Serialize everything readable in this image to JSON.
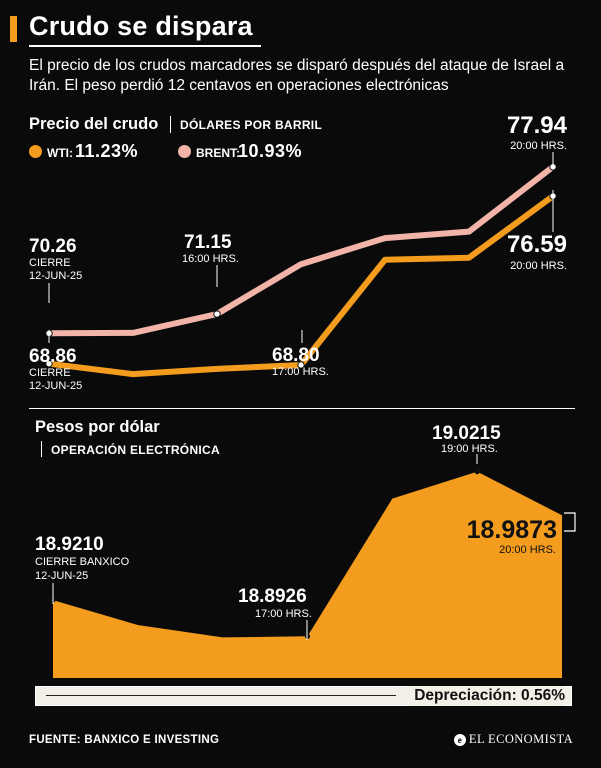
{
  "header": {
    "title": "Crudo se dispara",
    "subtitle": "El precio de los crudos marcadores se disparó después del ataque de Israel a Irán. El peso perdió 12 centavos en operaciones electrónicas"
  },
  "crude": {
    "title": "Precio del crudo",
    "unit": "DÓLARES POR BARRIL",
    "legend": [
      {
        "label": "WTI:",
        "value": "11.23%",
        "color": "#f39c1e"
      },
      {
        "label": "BRENT:",
        "value": "10.93%",
        "color": "#f2b3a8"
      }
    ],
    "annotations": {
      "brent_start_value": "70.26",
      "brent_start_sub1": "CIERRE",
      "brent_start_sub2": "12-JUN-25",
      "brent_mid_value": "71.15",
      "brent_mid_sub": "16:00 HRS.",
      "brent_end_value": "77.94",
      "brent_end_sub": "20:00 HRS.",
      "wti_start_value": "68.86",
      "wti_start_sub1": "CIERRE",
      "wti_start_sub2": "12-JUN-25",
      "wti_mid_value": "68.80",
      "wti_mid_sub": "17:00 HRS.",
      "wti_end_value": "76.59",
      "wti_end_sub": "20:00 HRS."
    }
  },
  "peso": {
    "title": "Pesos por dólar",
    "unit": "OPERACIÓN ELECTRÓNICA",
    "annotations": {
      "start_value": "18.9210",
      "start_sub1": "CIERRE BANXICO",
      "start_sub2": "12-JUN-25",
      "mid_value": "18.8926",
      "mid_sub": "17:00 HRS.",
      "peak_value": "19.0215",
      "peak_sub": "19:00 HRS.",
      "end_value": "18.9873",
      "end_sub": "20:00 HRS."
    },
    "depreciation": "Depreciación: 0.56%"
  },
  "footer": {
    "source": "FUENTE: BANXICO E INVESTING",
    "logo": "EL ECONOMISTA"
  },
  "chart_data": [
    {
      "type": "line",
      "title": "Precio del crudo",
      "ylabel": "DÓLARES POR BARRIL",
      "x": [
        "12-JUN-25",
        "",
        "16:00",
        "17:00",
        "",
        "",
        "20:00"
      ],
      "ylim": [
        67.0,
        79.5
      ],
      "series": [
        {
          "name": "BRENT",
          "color": "#f2b3a8",
          "values": [
            70.26,
            70.28,
            71.15,
            73.45,
            74.65,
            74.95,
            77.94
          ]
        },
        {
          "name": "WTI",
          "color": "#f39c1e",
          "values": [
            68.86,
            68.38,
            68.62,
            68.8,
            73.65,
            73.75,
            76.59
          ]
        }
      ]
    },
    {
      "type": "area",
      "title": "Pesos por dólar",
      "ylabel": "OPERACIÓN ELECTRÓNICA",
      "x": [
        "12-JUN-25",
        "",
        "",
        "17:00",
        "",
        "19:00",
        "20:00"
      ],
      "ylim": [
        18.86,
        19.04
      ],
      "series": [
        {
          "color": "#f39c1e",
          "values": [
            18.921,
            18.9015,
            18.8918,
            18.8926,
            19.0004,
            19.0215,
            18.9873
          ]
        }
      ]
    }
  ]
}
